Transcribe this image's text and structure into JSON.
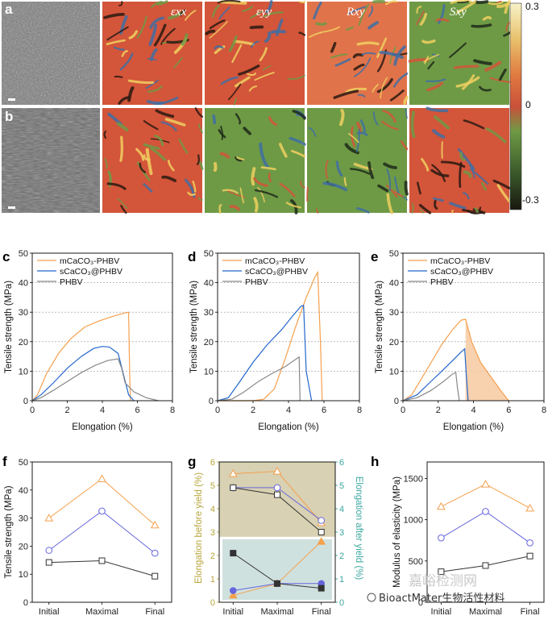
{
  "maps": {
    "rows": [
      {
        "label": "a",
        "maps": [
          "εxx",
          "εyy",
          "Rxy",
          "Sxy"
        ]
      },
      {
        "label": "b",
        "maps": [
          "εxx",
          "εyy",
          "Rxy",
          "Sxy"
        ]
      }
    ],
    "titles": [
      "εxx",
      "εyy",
      "Rxy",
      "Sxy"
    ],
    "colorbar": {
      "max_label": "0.3",
      "mid_label": "0",
      "min_label": "-0.3",
      "colors": [
        "#f5f0c0",
        "#e9c36a",
        "#e5793f",
        "#d24a32",
        "#5e8e3c",
        "#3a5a2a",
        "#1a1a14"
      ]
    },
    "colors": {
      "red": "#d3553a",
      "green": "#6f9a45",
      "blue": "#3f6fa3",
      "yellow": "#f0d060"
    }
  },
  "chart_data": [
    {
      "panel": "c",
      "type": "line",
      "xlabel": "Elongation (%)",
      "ylabel": "Tensile strength (MPa)",
      "xlim": [
        0,
        8
      ],
      "ylim": [
        0,
        50
      ],
      "xticks": [
        "0",
        "2",
        "4",
        "6",
        "8"
      ],
      "yticks": [
        "0",
        "10",
        "20",
        "30",
        "40",
        "50"
      ],
      "series": [
        {
          "name": "mCaCO₃-PHBV",
          "color": "#f5a04d",
          "x": [
            0,
            0.3,
            0.8,
            1.5,
            2.2,
            3.0,
            3.8,
            4.6,
            5.2,
            5.5,
            5.55,
            5.6
          ],
          "y": [
            0,
            2,
            9,
            16,
            21,
            25,
            27,
            28.6,
            29.6,
            30,
            12,
            0
          ]
        },
        {
          "name": "sCaCO₃@PHBV",
          "color": "#2266cc",
          "x": [
            0,
            0.5,
            1.2,
            2.0,
            2.8,
            3.5,
            4.0,
            4.4,
            4.9,
            5.2,
            5.5,
            5.8
          ],
          "y": [
            0,
            2,
            6,
            11,
            15,
            17.7,
            18.4,
            18.2,
            16,
            9,
            2,
            0
          ]
        },
        {
          "name": "PHBV",
          "color": "#888888",
          "x": [
            0,
            0.5,
            1.2,
            2.0,
            2.8,
            3.6,
            4.3,
            4.9,
            5.1,
            5.3,
            5.8,
            6.5,
            7.2
          ],
          "y": [
            0,
            1,
            3.5,
            6.5,
            9.5,
            12,
            13.6,
            14.2,
            11,
            6,
            3,
            1,
            0
          ]
        }
      ]
    },
    {
      "panel": "d",
      "type": "line",
      "xlabel": "Elongation (%)",
      "ylabel": "Tensile strength (MPa)",
      "xlim": [
        0,
        8
      ],
      "ylim": [
        0,
        50
      ],
      "xticks": [
        "0",
        "2",
        "4",
        "6",
        "8"
      ],
      "yticks": [
        "0",
        "10",
        "20",
        "30",
        "40",
        "50"
      ],
      "series": [
        {
          "name": "mCaCO₃-PHBV",
          "color": "#f5a04d",
          "x": [
            0,
            2.0,
            2.6,
            3.2,
            3.8,
            4.4,
            5.0,
            5.5,
            5.65,
            5.8,
            5.9
          ],
          "y": [
            0,
            0,
            0.5,
            4,
            14,
            25,
            35,
            42,
            43.5,
            20,
            0
          ]
        },
        {
          "name": "sCaCO₃@PHBV",
          "color": "#2266cc",
          "x": [
            0,
            0.6,
            1.2,
            2.0,
            2.8,
            3.6,
            4.2,
            4.7,
            4.85,
            5.0,
            5.3
          ],
          "y": [
            0,
            1,
            6,
            13,
            19,
            24,
            28.5,
            32,
            32.3,
            10,
            0
          ]
        },
        {
          "name": "PHBV",
          "color": "#888888",
          "x": [
            0,
            0.8,
            1.5,
            2.3,
            3.0,
            3.8,
            4.4,
            4.6,
            4.65
          ],
          "y": [
            0,
            0.5,
            3,
            6.5,
            9,
            11.5,
            14,
            14.8,
            0
          ]
        }
      ]
    },
    {
      "panel": "e",
      "type": "area",
      "xlabel": "Elongation (%)",
      "ylabel": "Tensile strength (MPa)",
      "xlim": [
        0,
        8
      ],
      "ylim": [
        0,
        50
      ],
      "xticks": [
        "0",
        "2",
        "4",
        "6",
        "8"
      ],
      "yticks": [
        "0",
        "10",
        "20",
        "30",
        "40",
        "50"
      ],
      "series": [
        {
          "name": "mCaCO₃-PHBV",
          "color": "#f5a04d",
          "x": [
            0,
            0.5,
            1.0,
            1.6,
            2.2,
            2.8,
            3.3,
            3.55,
            3.9,
            4.4,
            5.0,
            5.6,
            6.0
          ],
          "y": [
            0,
            2,
            7,
            13,
            19,
            24,
            27.3,
            27.6,
            20,
            13,
            8,
            3,
            0
          ]
        },
        {
          "name": "sCaCO₃@PHBV",
          "color": "#2266cc",
          "x": [
            0,
            0.8,
            1.5,
            2.2,
            2.8,
            3.3,
            3.5,
            3.6,
            3.7
          ],
          "y": [
            0,
            2,
            6,
            10,
            13.5,
            16.5,
            17.6,
            8,
            0
          ]
        },
        {
          "name": "PHBV",
          "color": "#888888",
          "x": [
            0,
            0.8,
            1.6,
            2.3,
            2.8,
            3.0,
            3.1,
            3.2
          ],
          "y": [
            0,
            1,
            3.5,
            6.5,
            9,
            9.6,
            4,
            0
          ]
        }
      ]
    },
    {
      "panel": "f",
      "type": "line",
      "categories": [
        "Initial",
        "Maximal",
        "Final"
      ],
      "ylabel": "Tensile strength (MPa)",
      "ylim": [
        0,
        50
      ],
      "yticks": [
        "0",
        "10",
        "20",
        "30",
        "40",
        "50"
      ],
      "series": [
        {
          "name": "mCaCO₃-PHBV",
          "color": "#f5a04d",
          "marker": "triangle",
          "values": [
            30,
            44,
            27.5
          ]
        },
        {
          "name": "sCaCO₃@PHBV",
          "color": "#6666dd",
          "marker": "circle",
          "values": [
            18.5,
            32.5,
            17.5
          ]
        },
        {
          "name": "PHBV",
          "color": "#333333",
          "marker": "square",
          "values": [
            14.2,
            14.8,
            9.3
          ]
        }
      ]
    },
    {
      "panel": "g",
      "type": "line",
      "categories": [
        "Initial",
        "Maximal",
        "Final"
      ],
      "ylabel_left": "Elongation before yield (%)",
      "ylabel_right": "Elongation after yield (%)",
      "ylim": [
        0,
        6
      ],
      "yticks": [
        "0",
        "1",
        "2",
        "3",
        "4",
        "5",
        "6"
      ],
      "colors": {
        "left_axis": "#b8a53a",
        "right_axis": "#3ca7a0",
        "top_band": "#d8d1b3",
        "bottom_band": "#cfe1de"
      },
      "series_before_yield": [
        {
          "name": "mCaCO₃-PHBV",
          "color": "#f5a04d",
          "marker": "triangle",
          "values": [
            5.5,
            5.6,
            3.4
          ]
        },
        {
          "name": "sCaCO₃@PHBV",
          "color": "#6666dd",
          "marker": "circle",
          "values": [
            4.9,
            4.9,
            3.5
          ]
        },
        {
          "name": "PHBV",
          "color": "#333333",
          "marker": "square",
          "values": [
            4.9,
            4.6,
            3.0
          ]
        }
      ],
      "series_after_yield": [
        {
          "name": "mCaCO₃-PHBV",
          "color": "#f5a04d",
          "marker": "triangle",
          "values": [
            0.3,
            0.8,
            2.6
          ]
        },
        {
          "name": "sCaCO₃@PHBV",
          "color": "#6666dd",
          "marker": "circle",
          "values": [
            0.5,
            0.8,
            0.8
          ]
        },
        {
          "name": "PHBV",
          "color": "#333333",
          "marker": "square",
          "values": [
            2.1,
            0.8,
            0.6
          ]
        }
      ]
    },
    {
      "panel": "h",
      "type": "line",
      "categories": [
        "Initial",
        "Maximal",
        "Final"
      ],
      "ylabel": "Modulus of elasticity (MPa)",
      "ylim": [
        0,
        1700
      ],
      "ytick_values": [
        0,
        500,
        1000,
        1500
      ],
      "yticks": [
        "0",
        "500",
        "1000",
        "1500"
      ],
      "series": [
        {
          "name": "mCaCO₃-PHBV",
          "color": "#f5a04d",
          "marker": "triangle",
          "values": [
            1160,
            1430,
            1140
          ]
        },
        {
          "name": "sCaCO₃@PHBV",
          "color": "#6666dd",
          "marker": "circle",
          "values": [
            780,
            1100,
            720
          ]
        },
        {
          "name": "PHBV",
          "color": "#333333",
          "marker": "square",
          "values": [
            370,
            445,
            560
          ]
        }
      ]
    }
  ],
  "panel_labels": {
    "c": "c",
    "d": "d",
    "e": "e",
    "f": "f",
    "g": "g",
    "h": "h"
  },
  "watermark": {
    "text": "BioactMater生物活性材料",
    "logo": "嘉峪检测网"
  }
}
